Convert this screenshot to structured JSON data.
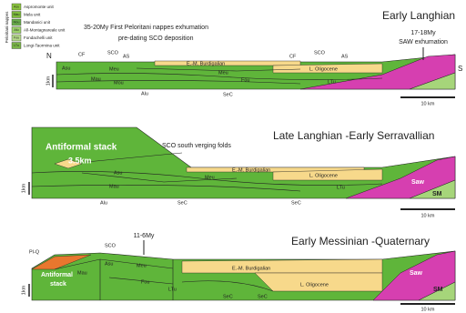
{
  "legend": {
    "title": "Peloritani nappes",
    "items": [
      {
        "code": "Asu",
        "label": "Aspromonte unit"
      },
      {
        "code": "Mau",
        "label": "Mela unit"
      },
      {
        "code": "Mou",
        "label": "Mandanici unit"
      },
      {
        "code": "Afu",
        "label": "Alì-Montagnareale unit"
      },
      {
        "code": "Fou",
        "label": "Fondachelli unit"
      },
      {
        "code": "LTu",
        "label": "Longi-Taormina unit"
      }
    ]
  },
  "panels": [
    {
      "title": "Early Langhian",
      "labels": [
        "35-20My First Peloritani nappes exhumation",
        "pre-dating SCO deposition",
        "17-18My",
        "SAW exhumation",
        "N",
        "S",
        "CF",
        "SCO",
        "AS",
        "CF",
        "SCO",
        "AS",
        "Asu",
        "Meu",
        "E.-M. Burdigalian",
        "Mau",
        "Meu",
        "L. Oligocene",
        "Mou",
        "Fou",
        "LTu",
        "Alu",
        "SeC",
        "1km",
        "10 km"
      ]
    },
    {
      "title": "Late Langhian -Early Serravallian",
      "labels": [
        "Antiformal stack",
        "3.5km",
        "SCO south verging folds",
        "E.-M. Burdigalian",
        "Asu",
        "Meu",
        "L. Oligocene",
        "Mau",
        "LTu",
        "Alu",
        "SeC",
        "SeC",
        "Saw",
        "SM",
        "1km",
        "10 km"
      ]
    },
    {
      "title": "Early Messinian -Quaternary",
      "labels": [
        "11-6My",
        "Pl-Q",
        "Antiformal",
        "stack",
        "SCO",
        "Asu",
        "Mau",
        "Meu",
        "E.-M. Burdigalian",
        "L. Oligocene",
        "Fou",
        "LTu",
        "SeC",
        "SeC",
        "Saw",
        "SM",
        "1km",
        "10 km"
      ]
    }
  ]
}
